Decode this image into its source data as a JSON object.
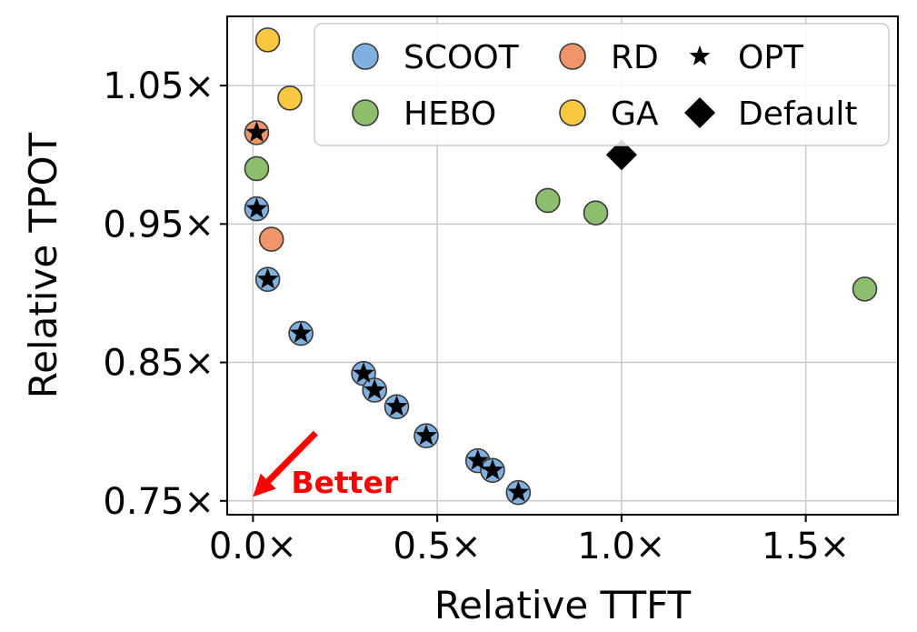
{
  "chart_data": {
    "type": "scatter",
    "xlabel": "Relative TTFT",
    "ylabel": "Relative TPOT",
    "xlim": [
      -0.07,
      1.75
    ],
    "ylim": [
      0.74,
      1.1
    ],
    "x_ticks": [
      0.0,
      0.5,
      1.0,
      1.5
    ],
    "x_tick_labels": [
      "0.0×",
      "0.5×",
      "1.0×",
      "1.5×"
    ],
    "y_ticks": [
      0.75,
      0.85,
      0.95,
      1.05
    ],
    "y_tick_labels": [
      "0.75×",
      "0.85×",
      "0.95×",
      "1.05×"
    ],
    "grid": true,
    "legend_position": "top-right",
    "series": [
      {
        "name": "SCOOT",
        "marker": "circle",
        "color": "#7fb1e0",
        "points": [
          {
            "x": 0.01,
            "y": 0.961
          },
          {
            "x": 0.04,
            "y": 0.91
          },
          {
            "x": 0.13,
            "y": 0.871
          },
          {
            "x": 0.3,
            "y": 0.842
          },
          {
            "x": 0.33,
            "y": 0.83
          },
          {
            "x": 0.39,
            "y": 0.818
          },
          {
            "x": 0.47,
            "y": 0.797
          },
          {
            "x": 0.61,
            "y": 0.779
          },
          {
            "x": 0.65,
            "y": 0.772
          },
          {
            "x": 0.72,
            "y": 0.756
          }
        ]
      },
      {
        "name": "RD",
        "marker": "circle",
        "color": "#f0956a",
        "points": [
          {
            "x": 0.01,
            "y": 1.016
          },
          {
            "x": 0.05,
            "y": 0.939
          }
        ]
      },
      {
        "name": "HEBO",
        "marker": "circle",
        "color": "#8dbe6e",
        "points": [
          {
            "x": 0.01,
            "y": 0.99
          },
          {
            "x": 0.8,
            "y": 0.967
          },
          {
            "x": 0.93,
            "y": 0.958
          },
          {
            "x": 1.66,
            "y": 0.903
          }
        ]
      },
      {
        "name": "GA",
        "marker": "circle",
        "color": "#f9c840",
        "points": [
          {
            "x": 0.04,
            "y": 1.083
          },
          {
            "x": 0.1,
            "y": 1.041
          }
        ]
      },
      {
        "name": "OPT",
        "marker": "star",
        "color": "#000000",
        "points": [
          {
            "x": 0.01,
            "y": 1.016
          },
          {
            "x": 0.01,
            "y": 0.961
          },
          {
            "x": 0.04,
            "y": 0.91
          },
          {
            "x": 0.13,
            "y": 0.871
          },
          {
            "x": 0.3,
            "y": 0.842
          },
          {
            "x": 0.33,
            "y": 0.83
          },
          {
            "x": 0.39,
            "y": 0.818
          },
          {
            "x": 0.47,
            "y": 0.797
          },
          {
            "x": 0.61,
            "y": 0.779
          },
          {
            "x": 0.65,
            "y": 0.772
          },
          {
            "x": 0.72,
            "y": 0.756
          }
        ]
      },
      {
        "name": "Default",
        "marker": "diamond",
        "color": "#000000",
        "points": [
          {
            "x": 1.0,
            "y": 1.0
          }
        ]
      }
    ],
    "legend": {
      "columns": 3,
      "entries": [
        "SCOOT",
        "RD",
        "OPT",
        "HEBO",
        "GA",
        "Default"
      ]
    },
    "annotation": {
      "text": "Better",
      "color": "#ff0000",
      "arrow_from": {
        "x": 0.17,
        "y": 0.799
      },
      "arrow_to": {
        "x": 0.0,
        "y": 0.753
      }
    }
  }
}
